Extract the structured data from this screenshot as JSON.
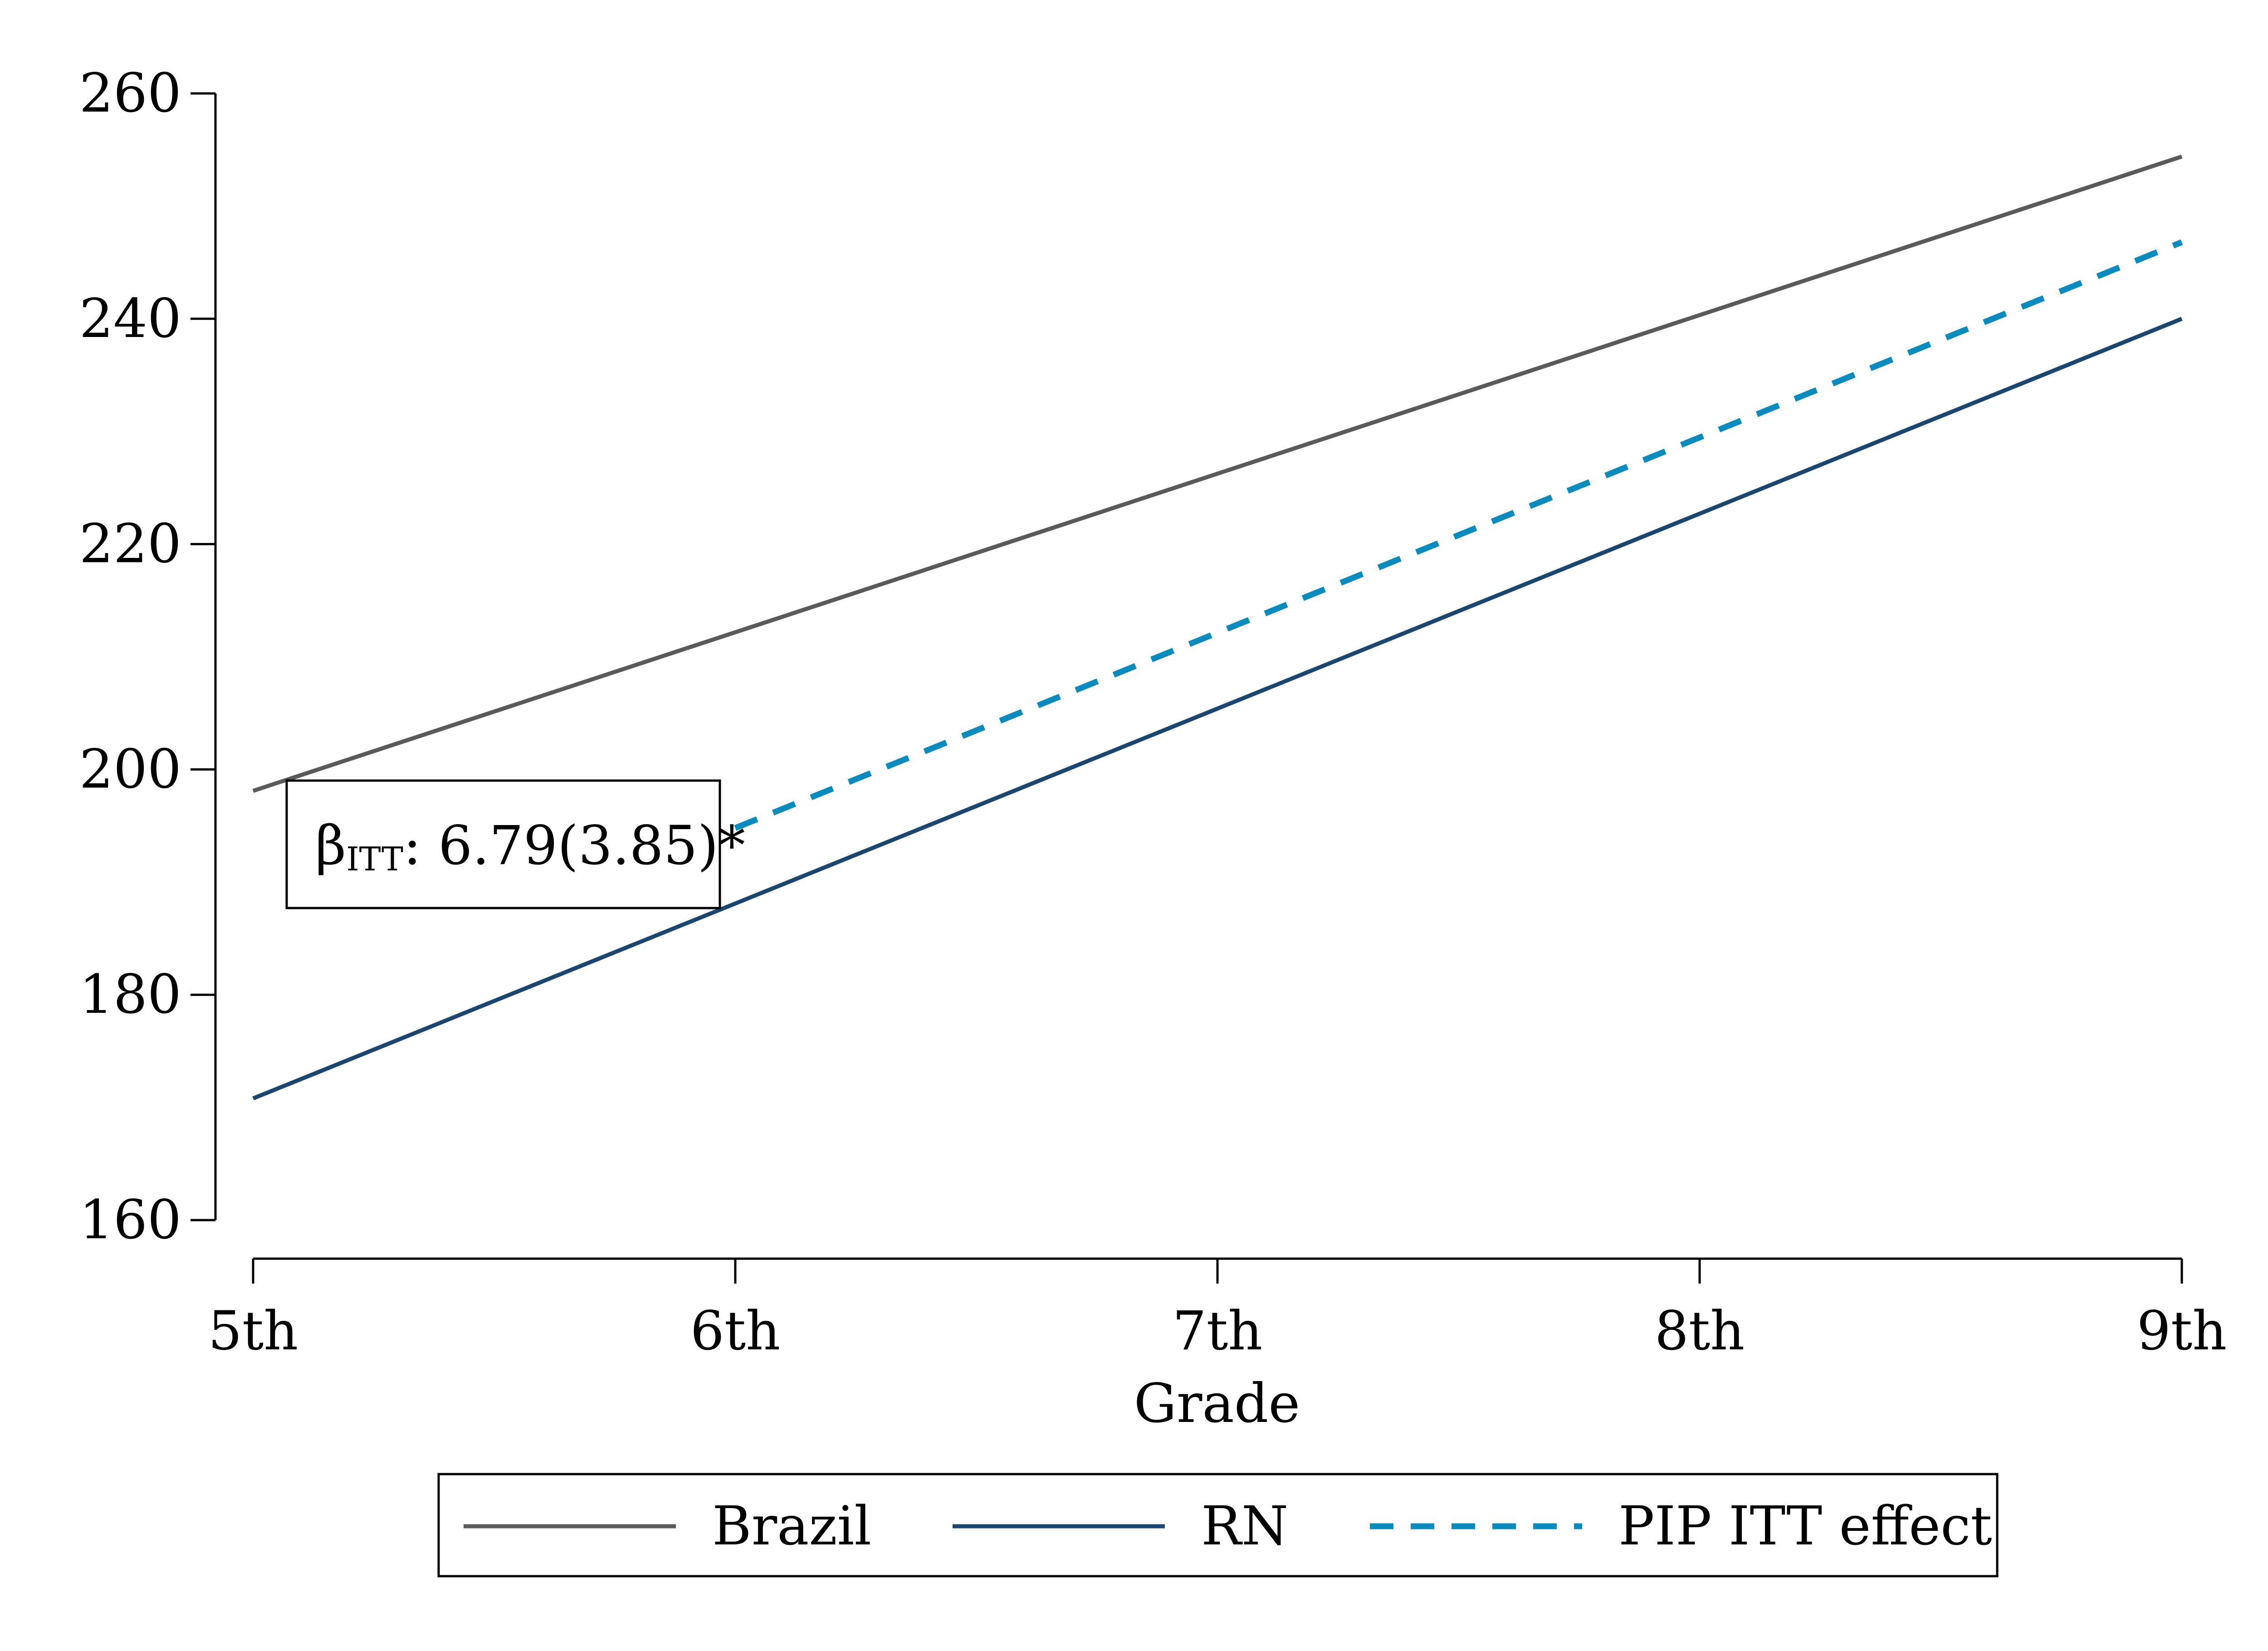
{
  "chart_data": {
    "type": "line",
    "title": "",
    "xlabel": "Grade",
    "ylabel": "",
    "categories": [
      "5th",
      "6th",
      "7th",
      "8th",
      "9th"
    ],
    "x_numeric": [
      5,
      9
    ],
    "ylim": [
      160,
      260
    ],
    "yticks": [
      160,
      180,
      200,
      220,
      240,
      260
    ],
    "grid": false,
    "legend_position": "bottom",
    "series": [
      {
        "name": "Brazil",
        "x": [
          5,
          9
        ],
        "y": [
          198.1,
          254.4
        ],
        "color": "#5a5a5a",
        "style": "solid"
      },
      {
        "name": "RN",
        "x": [
          5,
          9
        ],
        "y": [
          170.8,
          240.0
        ],
        "color": "#1a4670",
        "style": "solid"
      },
      {
        "name": "PIP ITT effect",
        "x": [
          6,
          9
        ],
        "y": [
          194.8,
          246.8
        ],
        "color": "#0a8bbd",
        "style": "dashed"
      }
    ],
    "annotation": {
      "symbol": "β",
      "subscript": "ITT",
      "text": ": 6.79(3.85)*"
    }
  }
}
